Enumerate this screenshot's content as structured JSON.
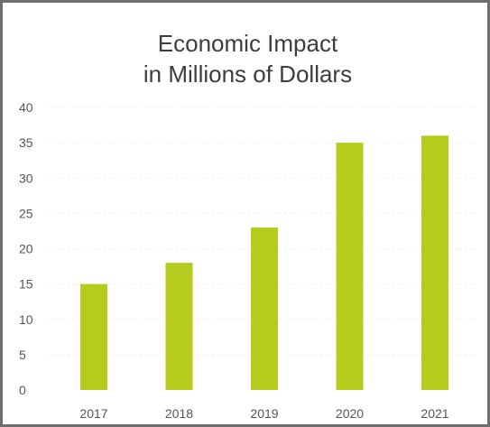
{
  "chart_data": {
    "type": "bar",
    "title_lines": [
      "Economic Impact",
      "in Millions of Dollars"
    ],
    "categories": [
      "2017",
      "2018",
      "2019",
      "2020",
      "2021"
    ],
    "values": [
      15,
      18,
      23,
      35,
      36
    ],
    "ylim": [
      0,
      40
    ],
    "yticks": [
      "0",
      "5",
      "10",
      "15",
      "20",
      "25",
      "30",
      "35",
      "40"
    ],
    "xlabel": "",
    "ylabel": "",
    "bar_color": "#b5cc1e",
    "grid": true,
    "legend": false
  }
}
